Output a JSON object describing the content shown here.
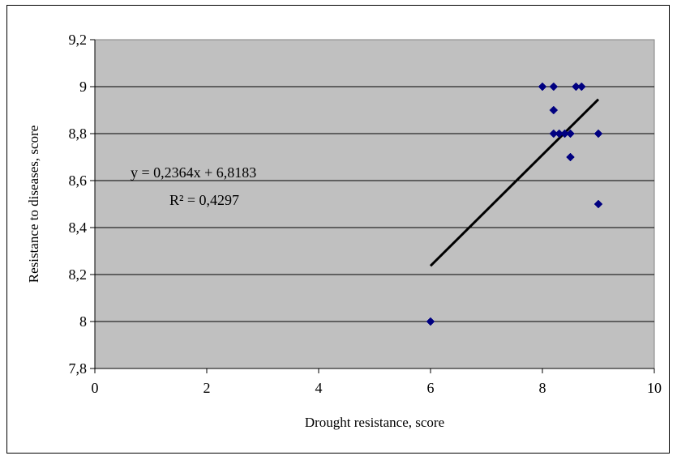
{
  "chart_data": {
    "type": "scatter",
    "title": "",
    "xlabel": "Drought resistance, score",
    "ylabel": "Resistance to diseases, score",
    "xlim": [
      0,
      10
    ],
    "ylim": [
      7.8,
      9.2
    ],
    "x_ticks": [
      0,
      2,
      4,
      6,
      8,
      10
    ],
    "x_tick_labels": [
      "0",
      "2",
      "4",
      "6",
      "8",
      "10"
    ],
    "y_ticks": [
      7.8,
      8.0,
      8.2,
      8.4,
      8.6,
      8.8,
      9.0,
      9.2
    ],
    "y_tick_labels": [
      "7,8",
      "8",
      "8,2",
      "8,4",
      "8,6",
      "8,8",
      "9",
      "9,2"
    ],
    "grid": "horizontal",
    "plot_background": "#c0c0c0",
    "marker_color": "#000080",
    "trend_color": "#000000",
    "points": [
      {
        "x": 6,
        "y": 8.0
      },
      {
        "x": 8,
        "y": 9.0
      },
      {
        "x": 8.2,
        "y": 9.0
      },
      {
        "x": 8.6,
        "y": 9.0
      },
      {
        "x": 8.7,
        "y": 9.0
      },
      {
        "x": 8.2,
        "y": 8.9
      },
      {
        "x": 8.2,
        "y": 8.8
      },
      {
        "x": 8.3,
        "y": 8.8
      },
      {
        "x": 8.4,
        "y": 8.8
      },
      {
        "x": 8.5,
        "y": 8.8
      },
      {
        "x": 9,
        "y": 8.8
      },
      {
        "x": 8.5,
        "y": 8.7
      },
      {
        "x": 9,
        "y": 8.5
      }
    ],
    "trendline": {
      "slope": 0.2364,
      "intercept": 6.8183,
      "x_range": [
        6,
        9
      ],
      "equation_label": "y = 0,2364x + 6,8183",
      "r2_label": "R² = 0,4297"
    }
  }
}
